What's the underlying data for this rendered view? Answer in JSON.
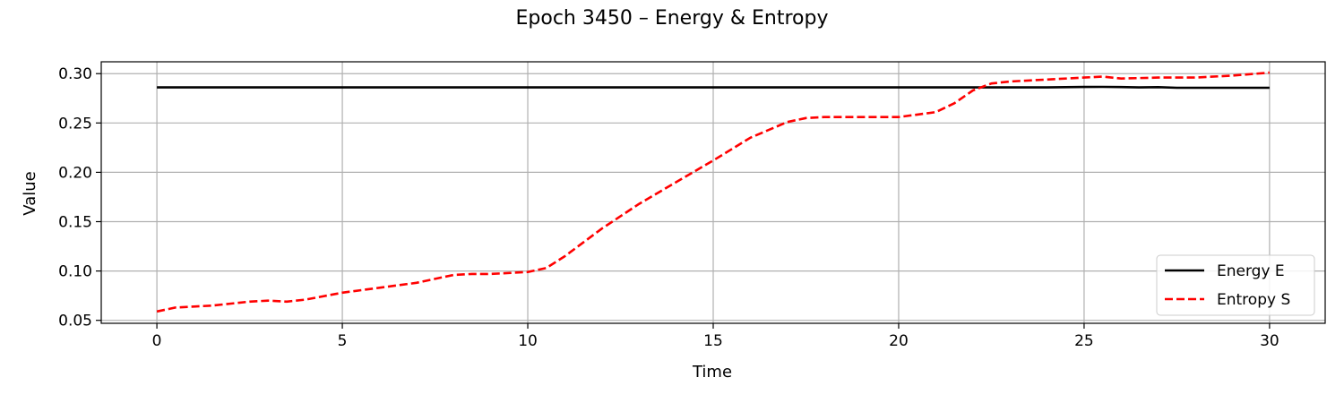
{
  "chart_data": {
    "type": "line",
    "title": "Epoch 3450 – Energy & Entropy",
    "xlabel": "Time",
    "ylabel": "Value",
    "xlim": [
      -1.5,
      31.5
    ],
    "ylim": [
      0.047,
      0.312
    ],
    "xticks": [
      0,
      5,
      10,
      15,
      20,
      25,
      30
    ],
    "xtick_labels": [
      "0",
      "5",
      "10",
      "15",
      "20",
      "25",
      "30"
    ],
    "yticks": [
      0.05,
      0.1,
      0.15,
      0.2,
      0.25,
      0.3
    ],
    "ytick_labels": [
      "0.05",
      "0.10",
      "0.15",
      "0.20",
      "0.25",
      "0.30"
    ],
    "grid": true,
    "legend_position": "bottom-right",
    "series": [
      {
        "name": "Energy E",
        "color": "#000000",
        "style": "solid",
        "x": [
          0,
          1,
          2,
          3,
          4,
          5,
          6,
          7,
          8,
          9,
          10,
          11,
          12,
          13,
          14,
          15,
          16,
          17,
          18,
          19,
          20,
          21,
          22,
          23,
          24,
          25,
          25.5,
          26,
          26.5,
          27,
          27.5,
          28,
          29,
          30
        ],
        "y": [
          0.286,
          0.286,
          0.286,
          0.286,
          0.286,
          0.286,
          0.286,
          0.286,
          0.286,
          0.286,
          0.286,
          0.286,
          0.286,
          0.286,
          0.286,
          0.286,
          0.286,
          0.286,
          0.286,
          0.286,
          0.286,
          0.286,
          0.286,
          0.286,
          0.286,
          0.2865,
          0.2866,
          0.2864,
          0.286,
          0.2863,
          0.2857,
          0.2857,
          0.2857,
          0.2857
        ]
      },
      {
        "name": "Entropy S",
        "color": "#ff0000",
        "style": "dashed",
        "x": [
          0,
          0.5,
          1,
          1.5,
          2,
          2.5,
          3,
          3.5,
          4,
          5,
          6,
          7,
          7.5,
          8,
          8.5,
          9,
          9.5,
          10,
          10.5,
          11,
          12,
          13,
          14,
          15,
          16,
          17,
          17.5,
          18,
          19,
          20,
          21,
          21.5,
          22,
          22.5,
          23,
          24,
          25,
          25.5,
          26,
          27,
          28,
          29,
          30
        ],
        "y": [
          0.059,
          0.063,
          0.064,
          0.065,
          0.067,
          0.069,
          0.07,
          0.069,
          0.071,
          0.078,
          0.083,
          0.088,
          0.092,
          0.096,
          0.097,
          0.097,
          0.098,
          0.099,
          0.103,
          0.115,
          0.143,
          0.168,
          0.19,
          0.212,
          0.235,
          0.251,
          0.255,
          0.256,
          0.256,
          0.256,
          0.261,
          0.27,
          0.283,
          0.29,
          0.292,
          0.294,
          0.296,
          0.297,
          0.295,
          0.296,
          0.296,
          0.298,
          0.301
        ]
      }
    ]
  }
}
